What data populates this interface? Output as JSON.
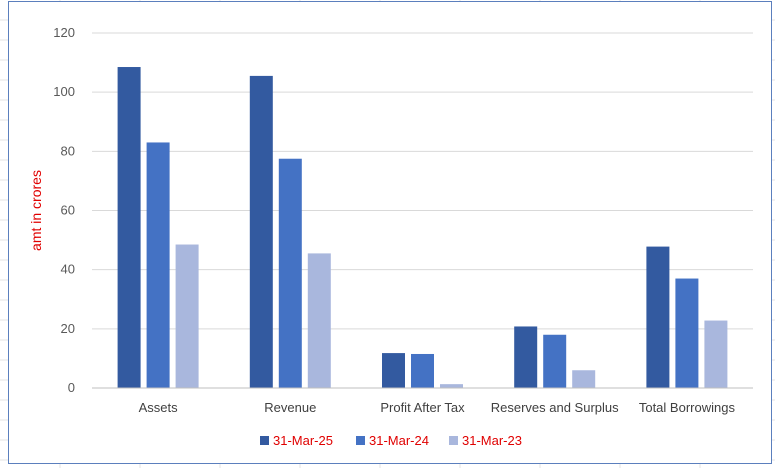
{
  "chart_data": {
    "type": "bar",
    "title": "",
    "xlabel": "",
    "ylabel": "amt in crores",
    "ylim": [
      0,
      120
    ],
    "yticks": [
      0,
      20,
      40,
      60,
      80,
      100,
      120
    ],
    "grid": true,
    "legend_position": "bottom",
    "categories": [
      "Assets",
      "Revenue",
      "Profit After Tax",
      "Reserves and Surplus",
      "Total Borrowings"
    ],
    "series": [
      {
        "name": "31-Mar-25",
        "color": "#335aa0",
        "values": [
          108.5,
          105.5,
          11.8,
          20.8,
          47.8
        ]
      },
      {
        "name": "31-Mar-24",
        "color": "#4472c4",
        "values": [
          83,
          77.5,
          11.5,
          18,
          37
        ]
      },
      {
        "name": "31-Mar-23",
        "color": "#a9b7dd",
        "values": [
          48.5,
          45.5,
          1.3,
          6,
          22.8
        ]
      }
    ]
  },
  "colors": {
    "gridline": "#d9d9d9",
    "axis_line": "#bfbfbf",
    "frame_border": "#5b7fbd",
    "sheet_gridline": "#e3e3e3",
    "label_red": "#e00000"
  }
}
